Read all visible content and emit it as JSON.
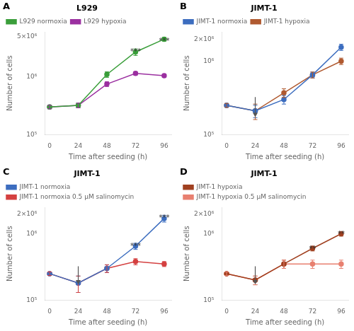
{
  "chart_data": [
    {
      "type": "line",
      "title": "L929",
      "subtitle": "A",
      "xlabel": "Time after seeding (h)",
      "ylabel": "Number of cells",
      "log": "y",
      "grid": false,
      "legend": "upper left",
      "marker": "circle",
      "x": [
        0,
        24,
        48,
        72,
        96
      ],
      "series": [
        {
          "name": "L929 normoxia",
          "color": "#3a9e3a",
          "values": [
            300000,
            320000,
            1100000,
            2700000,
            4500000
          ],
          "yerr": [
            20000,
            30000,
            120000,
            350000,
            350000
          ]
        },
        {
          "name": "L929 hypoxia",
          "color": "#9b30a0",
          "values": [
            300000,
            320000,
            750000,
            1150000,
            1050000
          ],
          "yerr": [
            20000,
            30000,
            70000,
            80000,
            70000
          ]
        }
      ],
      "xlim": [
        -4,
        102
      ],
      "xticks": [
        0,
        24,
        48,
        72,
        96
      ],
      "ylim": [
        100000,
        6000000
      ],
      "yticks": [
        {
          "value": 100000,
          "label": "10⁵"
        },
        {
          "value": 1000000,
          "label": "10⁶"
        },
        {
          "value": 5000000,
          "label": "5×10⁶"
        }
      ],
      "annotations": [
        {
          "x": 72,
          "y": 2300000,
          "text": "***"
        },
        {
          "x": 96,
          "y": 3500000,
          "text": "***"
        }
      ],
      "arrows": []
    },
    {
      "type": "line",
      "title": "JIMT-1",
      "subtitle": "B",
      "xlabel": "Time after seeding (h)",
      "ylabel": "Number of cells",
      "log": "y",
      "grid": false,
      "legend": "upper left",
      "marker": "circle",
      "x": [
        0,
        24,
        48,
        72,
        96
      ],
      "series": [
        {
          "name": "JIMT-1 normoxia",
          "color": "#3c6dbf",
          "values": [
            250000,
            210000,
            300000,
            650000,
            1550000
          ],
          "yerr": [
            15000,
            40000,
            40000,
            60000,
            150000
          ]
        },
        {
          "name": "JIMT-1 hypoxia",
          "color": "#b05a30",
          "values": [
            250000,
            210000,
            370000,
            650000,
            1000000
          ],
          "yerr": [
            15000,
            50000,
            50000,
            60000,
            100000
          ]
        }
      ],
      "xlim": [
        -4,
        102
      ],
      "xticks": [
        0,
        24,
        48,
        72,
        96
      ],
      "ylim": [
        100000,
        2500000
      ],
      "yticks": [
        {
          "value": 100000,
          "label": "10⁵"
        },
        {
          "value": 1000000,
          "label": "10⁶"
        },
        {
          "value": 2000000,
          "label": "2×10⁶"
        }
      ],
      "annotations": [],
      "arrows": [
        {
          "x": 24,
          "y_from": 323842.44,
          "y_to": 172715.97
        }
      ]
    },
    {
      "type": "line",
      "title": "JIMT-1",
      "subtitle": "C",
      "xlabel": "Time after seeding (h)",
      "ylabel": "Number of cells",
      "log": "y",
      "grid": false,
      "legend": "upper left",
      "marker": "circle",
      "x": [
        0,
        24,
        48,
        72,
        96
      ],
      "series": [
        {
          "name": "JIMT-1 normoxia",
          "color": "#3c6dbf",
          "values": [
            250000,
            180000,
            300000,
            650000,
            1700000
          ],
          "yerr": [
            15000,
            50000,
            40000,
            70000,
            200000
          ]
        },
        {
          "name": "JIMT-1 normoxia 0.5 μM salinomycin",
          "color": "#d44040",
          "values": [
            250000,
            180000,
            300000,
            380000,
            350000
          ],
          "yerr": [
            15000,
            50000,
            40000,
            40000,
            30000
          ]
        }
      ],
      "xlim": [
        -4,
        102
      ],
      "xticks": [
        0,
        24,
        48,
        72,
        96
      ],
      "ylim": [
        100000,
        2500000
      ],
      "yticks": [
        {
          "value": 100000,
          "label": "10⁵"
        },
        {
          "value": 1000000,
          "label": "10⁶"
        },
        {
          "value": 2000000,
          "label": "2×10⁶"
        }
      ],
      "annotations": [
        {
          "x": 72,
          "y": 550000,
          "text": "***"
        },
        {
          "x": 96,
          "y": 1500000,
          "text": "***"
        }
      ],
      "arrows": [
        {
          "x": 24,
          "y_from": 323842.44,
          "y_to": 172715.97
        }
      ]
    },
    {
      "type": "line",
      "title": "JIMT-1",
      "subtitle": "D",
      "xlabel": "Time after seeding (h)",
      "ylabel": "Number of cells",
      "log": "y",
      "grid": false,
      "legend": "upper left",
      "marker": "circle",
      "x": [
        0,
        24,
        48,
        72,
        96
      ],
      "series": [
        {
          "name": "JIMT-1 hypoxia",
          "color": "#a04020",
          "values": [
            250000,
            200000,
            350000,
            600000,
            1000000
          ],
          "yerr": [
            15000,
            30000,
            50000,
            50000,
            80000
          ]
        },
        {
          "name": "JIMT-1 hypoxia 0.5 μM salinomycin",
          "color": "#e88070",
          "values": [
            250000,
            200000,
            350000,
            350000,
            350000
          ],
          "yerr": [
            15000,
            30000,
            50000,
            50000,
            50000
          ]
        }
      ],
      "xlim": [
        -4,
        102
      ],
      "xticks": [
        0,
        24,
        48,
        72,
        96
      ],
      "ylim": [
        100000,
        2500000
      ],
      "yticks": [
        {
          "value": 100000,
          "label": "10⁵"
        },
        {
          "value": 1000000,
          "label": "10⁶"
        },
        {
          "value": 2000000,
          "label": "2×10⁶"
        }
      ],
      "annotations": [
        {
          "x": 72,
          "y": 500000,
          "text": "**"
        },
        {
          "x": 96,
          "y": 850000,
          "text": "**"
        }
      ],
      "arrows": [
        {
          "x": 24,
          "y_from": 323842.44,
          "y_to": 172715.97
        }
      ]
    }
  ]
}
